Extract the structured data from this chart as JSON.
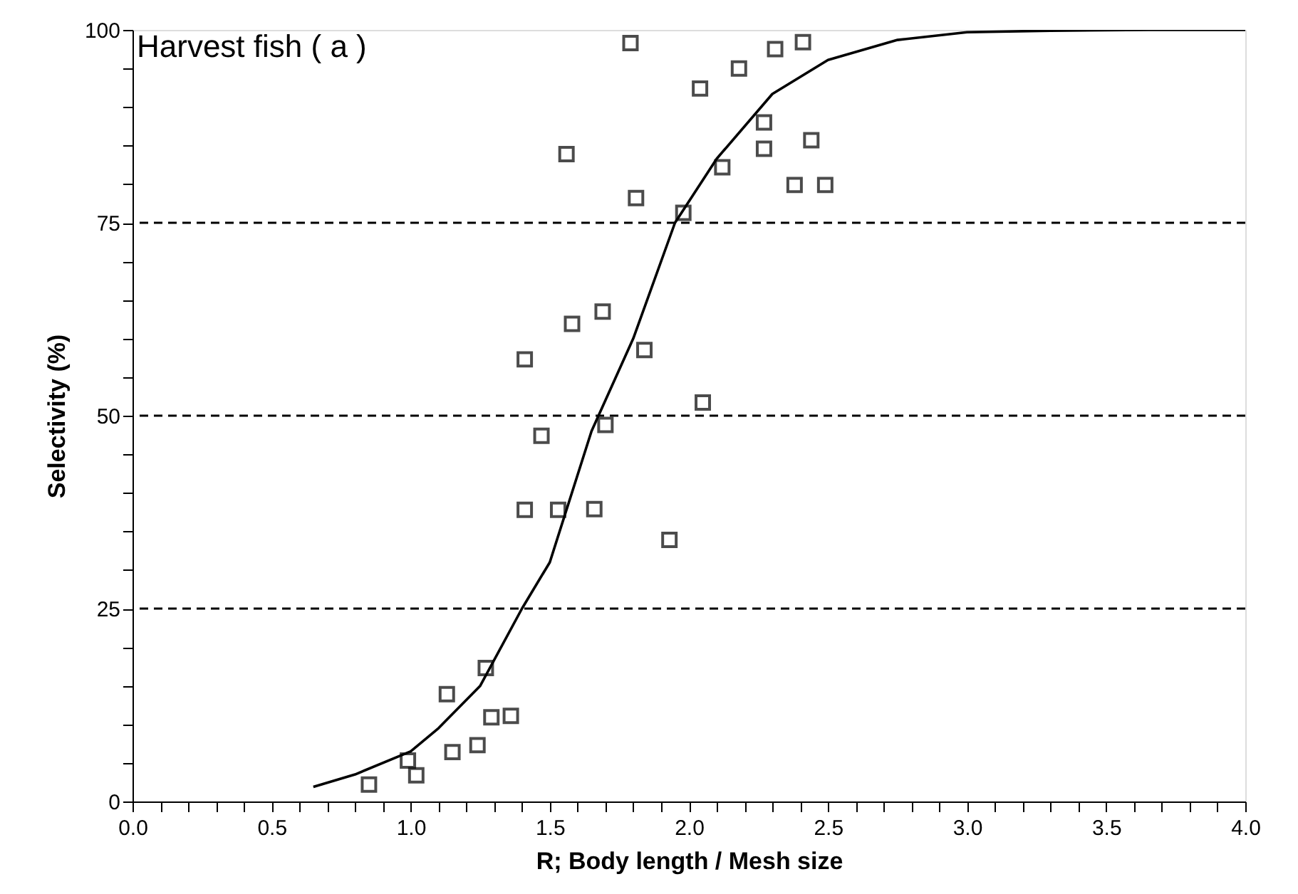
{
  "chart_data": {
    "type": "scatter",
    "title": "Harvest fish ( a )",
    "xlabel": "R; Body length / Mesh size",
    "ylabel": "Selectivity (%)",
    "xlim": [
      0,
      4
    ],
    "ylim": [
      0,
      100
    ],
    "xticks": [
      {
        "value": 0,
        "label": "0.0"
      },
      {
        "value": 0.1,
        "label": null
      },
      {
        "value": 0.2,
        "label": null
      },
      {
        "value": 0.3,
        "label": null
      },
      {
        "value": 0.4,
        "label": null
      },
      {
        "value": 0.5,
        "label": "0.5"
      },
      {
        "value": 0.6,
        "label": null
      },
      {
        "value": 0.7,
        "label": null
      },
      {
        "value": 0.8,
        "label": null
      },
      {
        "value": 0.9,
        "label": null
      },
      {
        "value": 1,
        "label": "1.0"
      },
      {
        "value": 1.1,
        "label": null
      },
      {
        "value": 1.2,
        "label": null
      },
      {
        "value": 1.3,
        "label": null
      },
      {
        "value": 1.4,
        "label": null
      },
      {
        "value": 1.5,
        "label": "1.5"
      },
      {
        "value": 1.6,
        "label": null
      },
      {
        "value": 1.7,
        "label": null
      },
      {
        "value": 1.8,
        "label": null
      },
      {
        "value": 1.9,
        "label": null
      },
      {
        "value": 2,
        "label": "2.0"
      },
      {
        "value": 2.1,
        "label": null
      },
      {
        "value": 2.2,
        "label": null
      },
      {
        "value": 2.3,
        "label": null
      },
      {
        "value": 2.4,
        "label": null
      },
      {
        "value": 2.5,
        "label": "2.5"
      },
      {
        "value": 2.6,
        "label": null
      },
      {
        "value": 2.7,
        "label": null
      },
      {
        "value": 2.8,
        "label": null
      },
      {
        "value": 2.9,
        "label": null
      },
      {
        "value": 3,
        "label": "3.0"
      },
      {
        "value": 3.1,
        "label": null
      },
      {
        "value": 3.2,
        "label": null
      },
      {
        "value": 3.3,
        "label": null
      },
      {
        "value": 3.4,
        "label": null
      },
      {
        "value": 3.5,
        "label": "3.5"
      },
      {
        "value": 3.6,
        "label": null
      },
      {
        "value": 3.7,
        "label": null
      },
      {
        "value": 3.8,
        "label": null
      },
      {
        "value": 3.9,
        "label": null
      },
      {
        "value": 4,
        "label": "4.0"
      }
    ],
    "yticks": [
      0,
      {
        "value": 5,
        "label": null
      },
      {
        "value": 10,
        "label": null
      },
      {
        "value": 15,
        "label": null
      },
      {
        "value": 20,
        "label": null
      },
      25,
      {
        "value": 30,
        "label": null
      },
      {
        "value": 35,
        "label": null
      },
      {
        "value": 40,
        "label": null
      },
      {
        "value": 45,
        "label": null
      },
      50,
      {
        "value": 55,
        "label": null
      },
      {
        "value": 60,
        "label": null
      },
      {
        "value": 65,
        "label": null
      },
      {
        "value": 70,
        "label": null
      },
      75,
      {
        "value": 80,
        "label": null
      },
      {
        "value": 85,
        "label": null
      },
      {
        "value": 90,
        "label": null
      },
      {
        "value": 95,
        "label": null
      },
      100
    ],
    "grid": false,
    "marker": "square",
    "ref_lines": [
      {
        "axis": "y",
        "value": 25,
        "line_style": "dashed",
        "color": "#000000"
      },
      {
        "axis": "y",
        "value": 50,
        "line_style": "dashed",
        "color": "#000000"
      },
      {
        "axis": "y",
        "value": 75,
        "line_style": "dashed",
        "color": "#000000"
      }
    ],
    "series": [
      {
        "type": "scatter",
        "color": "#000000",
        "x": [
          0.85,
          0.99,
          1.02,
          1.13,
          1.15,
          1.24,
          1.27,
          1.29,
          1.36,
          1.41,
          1.47,
          1.53,
          1.66,
          1.7,
          1.93,
          1.79,
          2.04,
          1.56,
          1.81,
          1.98,
          1.58,
          1.69,
          1.41,
          1.84,
          2.05,
          2.31,
          2.41,
          2.18,
          2.27,
          2.27,
          2.44,
          2.12,
          2.38,
          2.49
        ],
        "values": [
          2.2,
          5.3,
          3.4,
          13.9,
          6.4,
          7.3,
          17.3,
          10.9,
          11.1,
          37.8,
          47.4,
          37.8,
          37.9,
          48.8,
          33.9,
          98.3,
          92.4,
          83.9,
          78.2,
          76.3,
          61.9,
          63.5,
          57.3,
          58.5,
          51.7,
          97.5,
          98.4,
          95.0,
          88.0,
          84.6,
          85.7,
          82.2,
          79.9,
          79.9
        ]
      },
      {
        "type": "line",
        "color": "#000000",
        "marker": "none",
        "line_style": "solid",
        "x": [
          0.65,
          0.8,
          1.0,
          1.1,
          1.25,
          1.4,
          1.5,
          1.65,
          1.8,
          1.95,
          2.1,
          2.3,
          2.5,
          2.75,
          3.0,
          3.3,
          3.65,
          4.0
        ],
        "values": [
          1.9,
          3.5,
          6.5,
          9.5,
          15,
          25,
          31,
          48,
          60,
          75,
          83.3,
          91.7,
          96.1,
          98.7,
          99.7,
          99.9,
          100,
          100
        ]
      }
    ]
  }
}
